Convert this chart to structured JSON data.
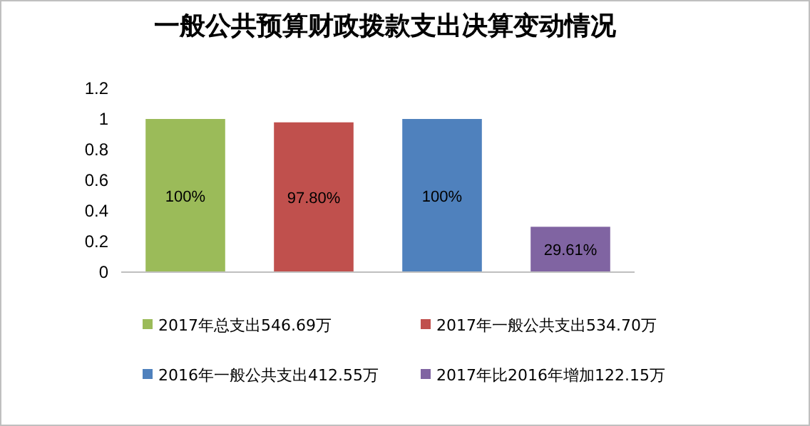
{
  "chart_data": {
    "type": "bar",
    "title": "一般公共预算财政拨款支出决算变动情况",
    "categories": [
      null
    ],
    "series": [
      {
        "name": "2017年总支出546.69万",
        "color": "#9bbb59",
        "values": [
          1
        ],
        "value_labels": [
          "100%"
        ]
      },
      {
        "name": "2017年一般公共支出534.70万",
        "color": "#c0504d",
        "values": [
          0.978
        ],
        "value_labels": [
          "97.80%"
        ]
      },
      {
        "name": "2016年一般公共支出412.55万",
        "color": "#4f81bd",
        "values": [
          1
        ],
        "value_labels": [
          "100%"
        ]
      },
      {
        "name": "2017年比2016年增加122.15万",
        "color": "#8064a2",
        "values": [
          0.2961
        ],
        "value_labels": [
          "29.61%"
        ]
      }
    ],
    "ylim": [
      0,
      1.2
    ],
    "yticks": [
      0,
      0.2,
      0.4,
      0.6,
      0.8,
      1,
      1.2
    ],
    "legend": "bottom"
  }
}
